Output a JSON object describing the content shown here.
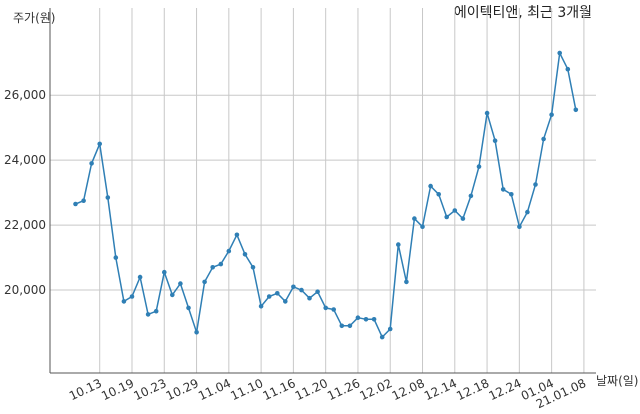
{
  "chart_data": {
    "type": "line",
    "title": "에이텍티앤, 최근 3개월",
    "xlabel": "날짜(일)",
    "ylabel": "주가(원)",
    "ylim": [
      18000,
      27700
    ],
    "grid": true,
    "y_ticks": [
      20000,
      22000,
      24000,
      26000
    ],
    "y_tick_labels": [
      "20,000",
      "22,000",
      "24,000",
      "26,000"
    ],
    "x_ticks": [
      "10.13",
      "10.19",
      "10.23",
      "10.29",
      "11.04",
      "11.10",
      "11.16",
      "11.20",
      "11.26",
      "12.02",
      "12.08",
      "12.14",
      "12.18",
      "12.24",
      "01.04",
      "21.01.08"
    ],
    "x_tick_index": [
      3,
      7,
      11,
      15,
      19,
      23,
      27,
      31,
      35,
      39,
      43,
      47,
      51,
      55,
      59,
      63
    ],
    "color": "#2f7fb5",
    "series": [
      {
        "values": [
          22650,
          22750,
          23900,
          24500,
          22850,
          21000,
          19650,
          19800,
          20400,
          19250,
          19350,
          20550,
          19850,
          20200,
          19450,
          18700,
          20250,
          20700,
          20800,
          21200,
          21700,
          21100,
          20700,
          19500,
          19800,
          19900,
          19650,
          20100,
          20000,
          19750,
          19950,
          19450,
          19400,
          18900,
          18900,
          19150,
          19100,
          19100,
          18550,
          18800,
          21400,
          20250,
          22200,
          21950,
          23200,
          22950,
          22250,
          22450,
          22200,
          22900,
          23800,
          25450,
          24600,
          23100,
          22950,
          21950,
          22400,
          23250,
          24650,
          25400,
          27300,
          26800,
          25550
        ]
      }
    ]
  }
}
